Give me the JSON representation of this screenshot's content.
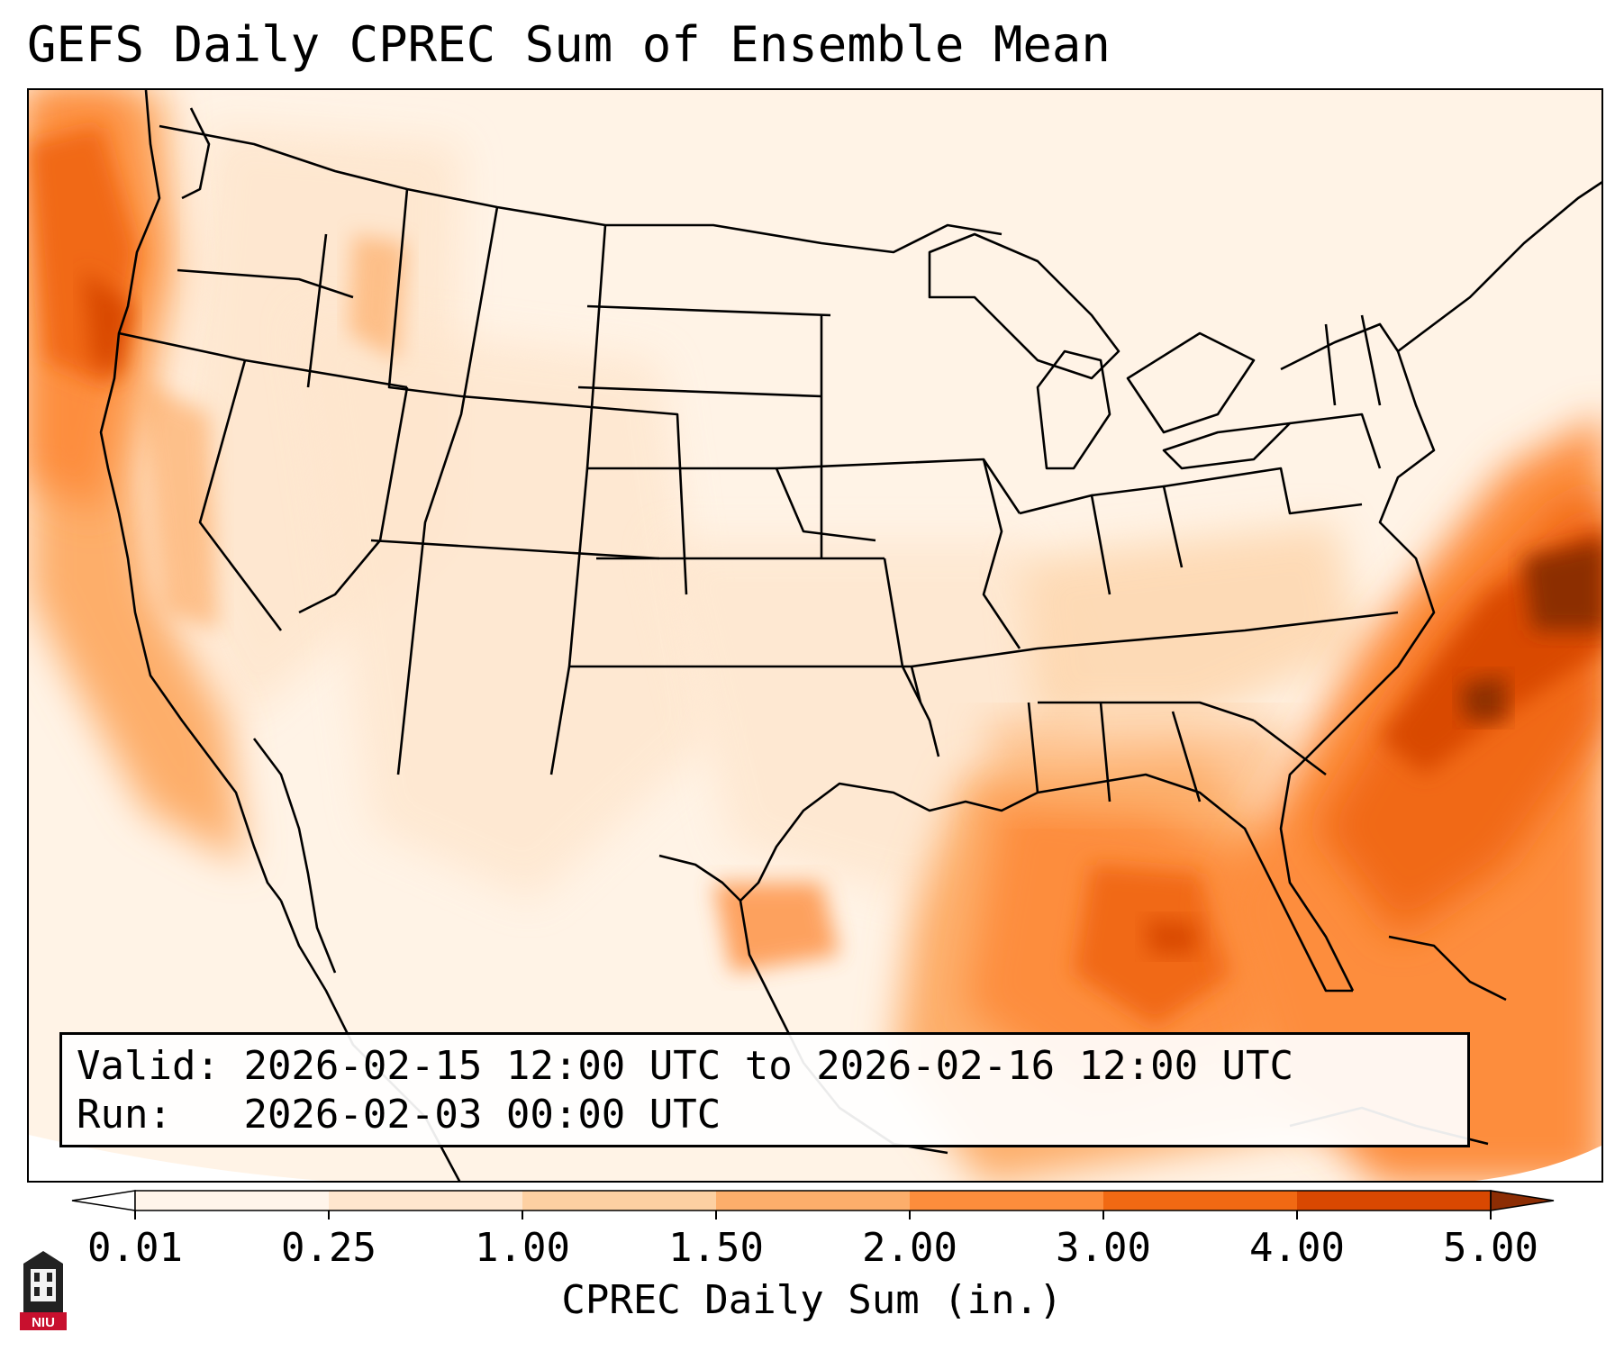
{
  "title": "GEFS Daily CPREC Sum of Ensemble Mean",
  "info": {
    "valid_label": "Valid:",
    "valid_value": "2026-02-15 12:00 UTC to 2026-02-16 12:00 UTC",
    "run_label": "Run:",
    "run_value": "2026-02-03 00:00 UTC"
  },
  "colorbar": {
    "label": "CPREC Daily Sum (in.)",
    "ticks": [
      "0.01",
      "0.25",
      "1.00",
      "1.50",
      "2.00",
      "3.00",
      "4.00",
      "5.00"
    ],
    "colors": [
      "#fff5eb",
      "#fee6ce",
      "#fdd0a2",
      "#fdae6b",
      "#fd8d3c",
      "#f16913",
      "#d94801",
      "#8c2d04"
    ],
    "extend": "both"
  },
  "logo": {
    "text": "NIU",
    "color": "#c8102e"
  }
}
